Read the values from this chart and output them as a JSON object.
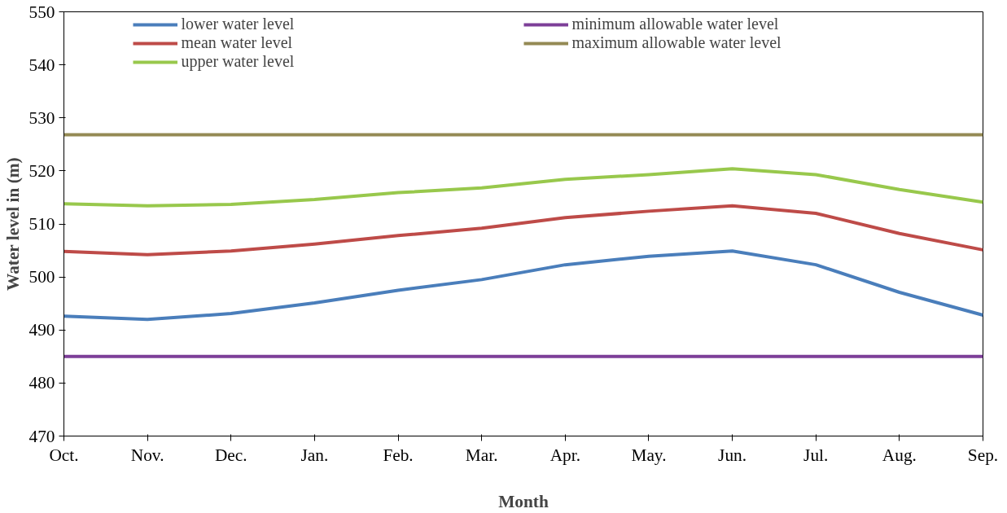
{
  "chart_data": {
    "type": "line",
    "xlabel": "Month",
    "ylabel": "Water level in (m)",
    "categories": [
      "Oct.",
      "Nov.",
      "Dec.",
      "Jan.",
      "Feb.",
      "Mar.",
      "Apr.",
      "May.",
      "Jun.",
      "Jul.",
      "Aug.",
      "Sep."
    ],
    "series": [
      {
        "name": "lower water level",
        "color": "#4a7ebb",
        "values": [
          492.6,
          492.0,
          493.1,
          495.1,
          497.5,
          499.5,
          502.3,
          503.9,
          504.9,
          502.3,
          497.1,
          492.8
        ]
      },
      {
        "name": "mean water level",
        "color": "#be4b48",
        "values": [
          504.8,
          504.2,
          504.9,
          506.2,
          507.8,
          509.2,
          511.2,
          512.4,
          513.4,
          512.0,
          508.2,
          505.1
        ]
      },
      {
        "name": "upper water level",
        "color": "#98c84c",
        "values": [
          513.8,
          513.4,
          513.7,
          514.6,
          515.9,
          516.8,
          518.4,
          519.3,
          520.4,
          519.3,
          516.5,
          514.1
        ]
      },
      {
        "name": "minimum allowable water level",
        "color": "#7d3f98",
        "values": [
          485,
          485,
          485,
          485,
          485,
          485,
          485,
          485,
          485,
          485,
          485,
          485
        ]
      },
      {
        "name": "maximum allowable water level",
        "color": "#948a54",
        "values": [
          526.8,
          526.8,
          526.8,
          526.8,
          526.8,
          526.8,
          526.8,
          526.8,
          526.8,
          526.8,
          526.8,
          526.8
        ]
      }
    ],
    "ylim": [
      470,
      550
    ],
    "yticks": [
      470,
      480,
      490,
      500,
      510,
      520,
      530,
      540,
      550
    ],
    "grid": false,
    "legend": "top",
    "marker": "none",
    "line_style": "solid"
  }
}
